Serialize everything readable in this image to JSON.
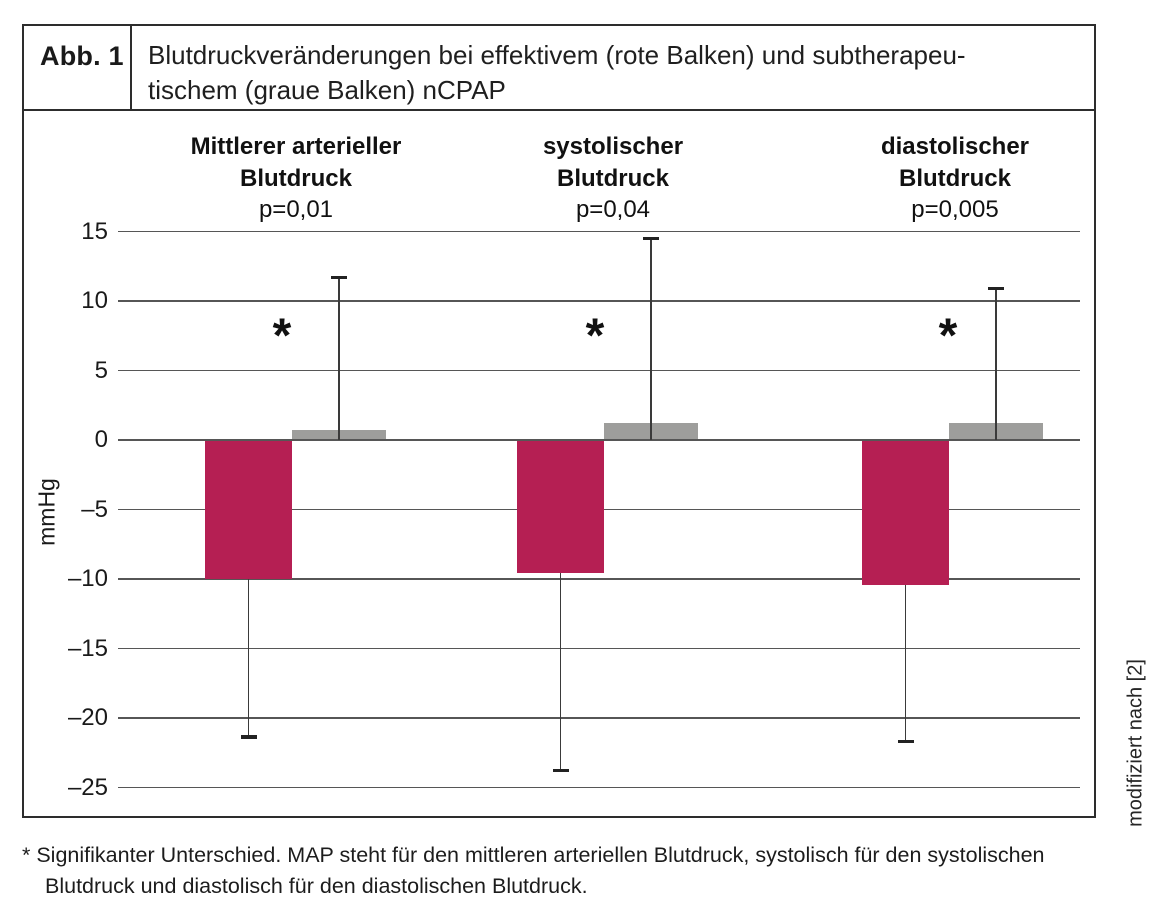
{
  "figure": {
    "label": "Abb. 1",
    "caption_line1": "Blutdruckveränderungen bei effektivem (rote Balken) und subtherapeu-",
    "caption_line2": "tischem (graue Balken) nCPAP"
  },
  "chart_data": {
    "type": "bar",
    "ylabel": "mmHg",
    "ylim": [
      -25,
      15
    ],
    "yticks": [
      15,
      10,
      5,
      0,
      -5,
      -10,
      -15,
      -20,
      -25
    ],
    "grid": true,
    "colors": {
      "effective_red": "#b51f53",
      "subtherapeutic_gray": "#9e9e9c"
    },
    "groups": [
      {
        "name_line1": "Mittlerer arterieller",
        "name_line2": "Blutdruck",
        "p_value": "p=0,01",
        "significant_marker": "*",
        "bars": [
          {
            "series": "effektives nCPAP (rote Balken)",
            "value": -10.0,
            "whisker_to": -21.4
          },
          {
            "series": "subtherapeutisches nCPAP (graue Balken)",
            "value": 0.7,
            "whisker_to": 11.7
          }
        ]
      },
      {
        "name_line1": "systolischer",
        "name_line2": "Blutdruck",
        "p_value": "p=0,04",
        "significant_marker": "*",
        "bars": [
          {
            "series": "effektives nCPAP (rote Balken)",
            "value": -9.6,
            "whisker_to": -23.8
          },
          {
            "series": "subtherapeutisches nCPAP (graue Balken)",
            "value": 1.2,
            "whisker_to": 14.5
          }
        ]
      },
      {
        "name_line1": "diastolischer",
        "name_line2": "Blutdruck",
        "p_value": "p=0,005",
        "significant_marker": "*",
        "bars": [
          {
            "series": "effektives nCPAP (rote Balken)",
            "value": -10.4,
            "whisker_to": -21.7
          },
          {
            "series": "subtherapeutisches nCPAP (graue Balken)",
            "value": 1.2,
            "whisker_to": 10.9
          }
        ]
      }
    ]
  },
  "side_note": "modifiziert nach [2]",
  "footnote": {
    "line1": "* Signifikanter Unterschied. MAP steht für den mittleren arteriellen Blutdruck, systolisch für den systolischen",
    "line2": "Blutdruck und diastolisch für den diastolischen Blutdruck."
  }
}
